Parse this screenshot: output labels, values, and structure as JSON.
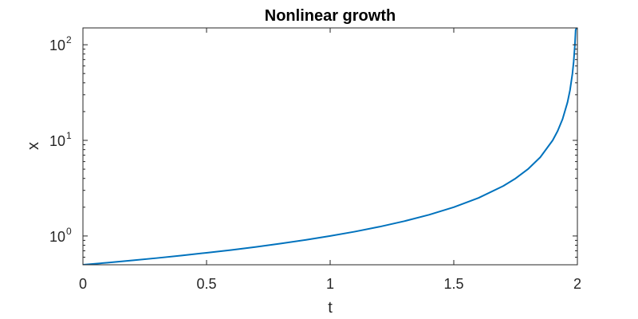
{
  "chart_data": {
    "type": "line",
    "title": "Nonlinear growth",
    "xlabel": "t",
    "ylabel": "x",
    "xlim": [
      0,
      2
    ],
    "ylim": [
      0.5,
      150
    ],
    "yscale": "log",
    "grid": false,
    "x_ticks": [
      0,
      0.5,
      1,
      1.5,
      2
    ],
    "x_tick_labels": [
      "0",
      "0.5",
      "1",
      "1.5",
      "2"
    ],
    "y_ticks": [
      1,
      10,
      100
    ],
    "y_tick_labels": [
      {
        "base": "10",
        "exp": "0"
      },
      {
        "base": "10",
        "exp": "1"
      },
      {
        "base": "10",
        "exp": "2"
      }
    ],
    "series": [
      {
        "color": "#0072BD",
        "x": [
          0,
          0.1,
          0.2,
          0.3,
          0.4,
          0.5,
          0.6,
          0.7,
          0.8,
          0.9,
          1.0,
          1.1,
          1.2,
          1.3,
          1.4,
          1.5,
          1.6,
          1.7,
          1.75,
          1.8,
          1.85,
          1.9,
          1.92,
          1.94,
          1.96,
          1.97,
          1.98,
          1.985,
          1.99,
          1.993,
          1.9967
        ],
        "y": [
          0.5,
          0.526,
          0.556,
          0.588,
          0.625,
          0.667,
          0.714,
          0.769,
          0.833,
          0.909,
          1.0,
          1.111,
          1.25,
          1.429,
          1.667,
          2.0,
          2.5,
          3.333,
          4.0,
          5.0,
          6.667,
          10.0,
          12.5,
          16.67,
          25.0,
          33.33,
          50.0,
          66.67,
          100.0,
          142.9,
          150.0
        ]
      }
    ]
  }
}
